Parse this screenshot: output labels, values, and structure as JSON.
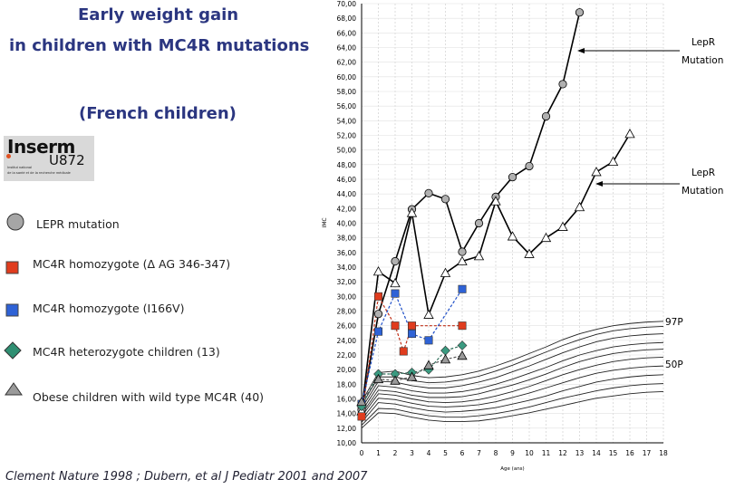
{
  "title": {
    "line1": "Early weight gain",
    "line2": "in children with MC4R mutations",
    "line3": "(French children)"
  },
  "logo": {
    "name": "Inserm",
    "unit": "U872",
    "sub1": "Institut national",
    "sub2": "de la santé et de la recherche médicale"
  },
  "legend": [
    {
      "label": "LEPR mutation",
      "marker": "circle",
      "color": "#a6a6a6"
    },
    {
      "label": "MC4R homozygote (Δ AG 346-347)",
      "marker": "square",
      "color": "#e03c1e"
    },
    {
      "label": "MC4R homozygote (I166V)",
      "marker": "square",
      "color": "#2e62d6"
    },
    {
      "label": "MC4R heterozygote children (13)",
      "marker": "diamond",
      "color": "#2f8f72"
    },
    {
      "label": "Obese children with wild type MC4R (40)",
      "marker": "triangle",
      "color": "#9a9a9a"
    }
  ],
  "footer": "Clement Nature 1998 ; Dubern, et al  J Pediatr 2001 and 2007",
  "chart_data": {
    "type": "line",
    "xlabel": "Age (ans)",
    "ylabel": "IMC",
    "xlim": [
      0,
      18
    ],
    "ylim": [
      10,
      70
    ],
    "xticks": [
      "0",
      "1",
      "2",
      "3",
      "4",
      "5",
      "6",
      "7",
      "8",
      "9",
      "10",
      "11",
      "12",
      "13",
      "14",
      "15",
      "16",
      "17",
      "18"
    ],
    "yticks": [
      "10,00",
      "12,00",
      "14,00",
      "16,00",
      "18,00",
      "20,00",
      "22,00",
      "24,00",
      "26,00",
      "28,00",
      "30,00",
      "32,00",
      "34,00",
      "36,00",
      "38,00",
      "40,00",
      "42,00",
      "44,00",
      "46,00",
      "48,00",
      "50,00",
      "52,00",
      "54,00",
      "56,00",
      "58,00",
      "60,00",
      "62,00",
      "64,00",
      "66,00",
      "68,00",
      "70,00"
    ],
    "annotations": {
      "lepr1_line1": "LepR",
      "lepr1_line2": "Mutation",
      "lepr2_line1": "LepR",
      "lepr2_line2": "Mutation",
      "p97": "97P",
      "p50": "50P"
    },
    "series": [
      {
        "name": "LEPR mutation (1)",
        "marker": "circle",
        "color": "#000000",
        "fill": "#b0b0b0",
        "x": [
          0,
          1,
          2,
          3,
          4,
          5,
          6,
          7,
          8,
          9,
          10,
          11,
          12,
          13
        ],
        "y": [
          14.5,
          27.6,
          34.8,
          41.9,
          44.1,
          43.3,
          36.1,
          40.0,
          43.6,
          46.3,
          47.8,
          54.6,
          59.0,
          68.8
        ]
      },
      {
        "name": "LEPR mutation (2)",
        "marker": "triangle",
        "color": "#000000",
        "fill": "#ffffff",
        "x": [
          0,
          1,
          2,
          3,
          4,
          5,
          6,
          7,
          8,
          9,
          10,
          11,
          12,
          13,
          14,
          15,
          16
        ],
        "y": [
          14.3,
          33.4,
          31.8,
          41.4,
          27.5,
          33.2,
          34.8,
          35.5,
          43.0,
          38.2,
          35.8,
          38.0,
          39.5,
          42.2,
          47.0,
          48.4,
          52.2
        ]
      },
      {
        "name": "MC4R homozygote (delta AG 346-347)",
        "marker": "square",
        "color": "#c03018",
        "fill": "#e03c1e",
        "dashed": true,
        "x": [
          0,
          1,
          2,
          2.5,
          3,
          6
        ],
        "y": [
          13.6,
          30.0,
          26.0,
          22.5,
          26.0,
          26.0
        ]
      },
      {
        "name": "MC4R homozygote (I166V)",
        "marker": "square",
        "color": "#2050c8",
        "fill": "#2e62d6",
        "dashed": true,
        "x": [
          0,
          1,
          2,
          3,
          4,
          6
        ],
        "y": [
          15.3,
          25.2,
          30.4,
          24.9,
          24.0,
          31.0
        ]
      },
      {
        "name": "MC4R heterozygote children (13)",
        "marker": "diamond",
        "color": "#2f6f5a",
        "fill": "#3a9a80",
        "dashed": true,
        "x": [
          0,
          1,
          2,
          3,
          4,
          5,
          6
        ],
        "y": [
          15.0,
          19.4,
          19.4,
          19.6,
          20.0,
          22.6,
          23.3
        ]
      },
      {
        "name": "Obese children with wild type MC4R (40)",
        "marker": "triangle",
        "color": "#555555",
        "fill": "#9a9a9a",
        "dashed": true,
        "x": [
          0,
          1,
          2,
          3,
          4,
          5,
          6
        ],
        "y": [
          15.6,
          18.7,
          18.5,
          19.0,
          20.6,
          21.4,
          21.9
        ]
      }
    ],
    "reference_curves": [
      {
        "name": "97P",
        "y": [
          15.6,
          19.6,
          19.8,
          19.2,
          18.9,
          19.0,
          19.3,
          19.8,
          20.5,
          21.3,
          22.2,
          23.1,
          24.1,
          24.9,
          25.5,
          26.0,
          26.3,
          26.5,
          26.6
        ]
      },
      {
        "name": "curve 2",
        "y": [
          15.1,
          19.0,
          19.0,
          18.5,
          18.2,
          18.3,
          18.6,
          19.1,
          19.8,
          20.6,
          21.5,
          22.4,
          23.3,
          24.1,
          24.8,
          25.3,
          25.6,
          25.8,
          25.9
        ]
      },
      {
        "name": "curve 3",
        "y": [
          14.7,
          18.4,
          18.3,
          17.8,
          17.5,
          17.5,
          17.8,
          18.3,
          18.9,
          19.7,
          20.5,
          21.4,
          22.3,
          23.1,
          23.8,
          24.3,
          24.6,
          24.8,
          24.9
        ]
      },
      {
        "name": "curve 4",
        "y": [
          14.3,
          17.8,
          17.6,
          17.1,
          16.8,
          16.8,
          17.0,
          17.4,
          18.0,
          18.7,
          19.5,
          20.3,
          21.2,
          22.0,
          22.6,
          23.1,
          23.4,
          23.6,
          23.7
        ]
      },
      {
        "name": "curve 5",
        "y": [
          13.9,
          17.2,
          17.0,
          16.5,
          16.2,
          16.2,
          16.3,
          16.7,
          17.3,
          17.9,
          18.6,
          19.4,
          20.3,
          21.1,
          21.7,
          22.2,
          22.5,
          22.7,
          22.8
        ]
      },
      {
        "name": "50P",
        "y": [
          13.6,
          16.7,
          16.5,
          16.0,
          15.6,
          15.5,
          15.6,
          15.9,
          16.4,
          17.0,
          17.7,
          18.5,
          19.3,
          20.0,
          20.6,
          21.1,
          21.4,
          21.6,
          21.7
        ]
      },
      {
        "name": "curve 7",
        "y": [
          13.2,
          16.1,
          15.9,
          15.4,
          15.0,
          14.9,
          15.0,
          15.2,
          15.6,
          16.2,
          16.8,
          17.5,
          18.2,
          18.9,
          19.5,
          19.9,
          20.2,
          20.4,
          20.5
        ]
      },
      {
        "name": "curve 8",
        "y": [
          12.8,
          15.5,
          15.3,
          14.8,
          14.4,
          14.2,
          14.3,
          14.5,
          14.8,
          15.3,
          15.8,
          16.4,
          17.1,
          17.7,
          18.3,
          18.7,
          19.0,
          19.2,
          19.3
        ]
      },
      {
        "name": "curve 9",
        "y": [
          12.4,
          14.7,
          14.6,
          14.1,
          13.7,
          13.5,
          13.5,
          13.7,
          14.0,
          14.4,
          14.9,
          15.5,
          16.1,
          16.6,
          17.1,
          17.5,
          17.8,
          18.0,
          18.1
        ]
      },
      {
        "name": "curve 10",
        "y": [
          12.0,
          14.1,
          14.0,
          13.5,
          13.1,
          12.9,
          12.9,
          13.0,
          13.3,
          13.7,
          14.1,
          14.6,
          15.1,
          15.6,
          16.1,
          16.4,
          16.7,
          16.9,
          17.0
        ]
      }
    ]
  }
}
